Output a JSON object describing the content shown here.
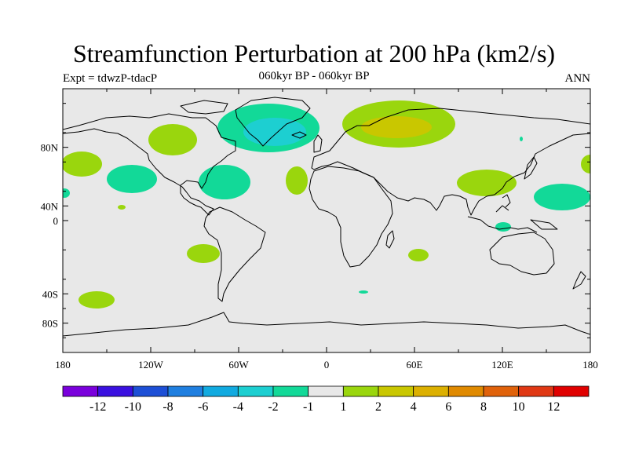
{
  "title": "Streamfunction Perturbation at 200 hPa (km2/s)",
  "left_subtitle": "Expt = tdwzP-tdacP",
  "center_subtitle": "060kyr BP - 060kyr BP",
  "right_subtitle": "ANN",
  "lat_ticks": [
    "80N",
    "40N",
    "0",
    "40S",
    "80S"
  ],
  "lon_ticks": [
    "180",
    "120W",
    "60W",
    "0",
    "60E",
    "120E",
    "180"
  ],
  "colorbar": {
    "colors": [
      "#7a00dc",
      "#3a10e0",
      "#1d4fd6",
      "#1f7fe0",
      "#11aae0",
      "#1dcfd1",
      "#12d998",
      "#e8e8e8",
      "#9ad60d",
      "#c9c700",
      "#dcb000",
      "#e08a00",
      "#e0620a",
      "#e03814",
      "#e00000"
    ],
    "labels": [
      "-12",
      "-10",
      "-8",
      "-6",
      "-4",
      "-2",
      "-1",
      "1",
      "2",
      "4",
      "6",
      "8",
      "10",
      "12"
    ]
  },
  "background_color": "#e8e8e8"
}
